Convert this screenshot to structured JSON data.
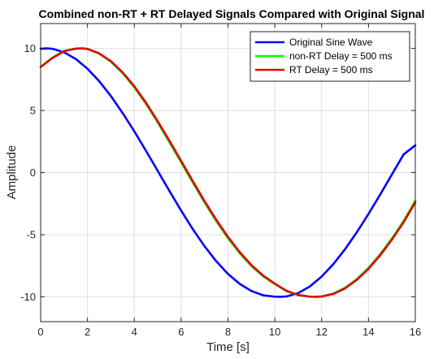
{
  "chart_data": {
    "type": "line",
    "title": "Combined non-RT + RT Delayed Signals Compared with Original Signal",
    "xlabel": "Time [s]",
    "ylabel": "Amplitude",
    "xlim": [
      0,
      16
    ],
    "ylim": [
      -12,
      12
    ],
    "xticks": [
      0,
      2,
      4,
      6,
      8,
      10,
      12,
      14,
      16
    ],
    "yticks": [
      -10,
      -5,
      0,
      5,
      10
    ],
    "xtick_labels": [
      "0",
      "2",
      "4",
      "6",
      "8",
      "10",
      "12",
      "14",
      "16"
    ],
    "ytick_labels": [
      "-10",
      "-5",
      "0",
      "5",
      "10"
    ],
    "grid": true,
    "legend_position": "top-right",
    "series": [
      {
        "name": "Original Sine Wave",
        "color": "#0000ff",
        "x": [
          0,
          0.25,
          0.5,
          1,
          1.5,
          2,
          2.5,
          3,
          3.5,
          4,
          4.5,
          5,
          5.5,
          6,
          6.5,
          7,
          7.5,
          8,
          8.5,
          9,
          9.5,
          10,
          10.25,
          10.5,
          11,
          11.5,
          12,
          12.5,
          13,
          13.5,
          14,
          14.5,
          15,
          15.5,
          16
        ],
        "y": [
          9.97,
          10.0,
          9.97,
          9.69,
          9.15,
          8.36,
          7.36,
          6.16,
          4.8,
          3.32,
          1.75,
          0.14,
          -1.48,
          -3.06,
          -4.56,
          -5.93,
          -7.14,
          -8.16,
          -8.96,
          -9.53,
          -9.88,
          -9.99,
          -10.0,
          -9.97,
          -9.7,
          -9.16,
          -8.37,
          -7.37,
          -6.17,
          -4.81,
          -3.33,
          -1.77,
          -0.15,
          1.46,
          2.2
        ]
      },
      {
        "name": "non-RT Delay = 500 ms",
        "color": "#00ff00",
        "x": [
          0,
          0.5,
          1,
          1.5,
          1.75,
          2,
          2.5,
          3,
          3.5,
          4,
          4.5,
          5,
          5.5,
          6,
          6.5,
          7,
          7.5,
          8,
          8.5,
          9,
          9.5,
          10,
          10.5,
          11,
          11.5,
          11.75,
          12,
          12.5,
          13,
          13.5,
          14,
          14.5,
          15,
          15.5,
          16
        ],
        "y": [
          8.5,
          9.25,
          9.8,
          9.99,
          10.0,
          9.95,
          9.58,
          8.93,
          8.01,
          6.87,
          5.53,
          4.03,
          2.45,
          0.82,
          -0.82,
          -2.41,
          -3.91,
          -5.28,
          -6.49,
          -7.52,
          -8.35,
          -8.97,
          -9.55,
          -9.87,
          -9.99,
          -10.0,
          -9.97,
          -9.74,
          -9.27,
          -8.58,
          -7.67,
          -6.57,
          -5.3,
          -3.9,
          -2.25
        ]
      },
      {
        "name": "RT Delay = 500 ms",
        "color": "#e60000",
        "x": [
          0,
          0.5,
          1,
          1.5,
          1.8,
          2,
          2.5,
          3,
          3.5,
          4,
          4.5,
          5,
          5.5,
          6,
          6.5,
          7,
          7.5,
          8,
          8.5,
          9,
          9.5,
          10,
          10.5,
          11,
          11.5,
          11.8,
          12,
          12.5,
          13,
          13.5,
          14,
          14.5,
          15,
          15.5,
          16
        ],
        "y": [
          8.5,
          9.22,
          9.77,
          9.98,
          10.0,
          9.96,
          9.6,
          8.97,
          8.07,
          6.95,
          5.62,
          4.13,
          2.56,
          0.94,
          -0.7,
          -2.3,
          -3.8,
          -5.18,
          -6.4,
          -7.45,
          -8.29,
          -8.94,
          -9.52,
          -9.85,
          -9.99,
          -10.0,
          -9.98,
          -9.77,
          -9.32,
          -8.64,
          -7.75,
          -6.66,
          -5.4,
          -4.0,
          -2.4
        ]
      }
    ]
  }
}
